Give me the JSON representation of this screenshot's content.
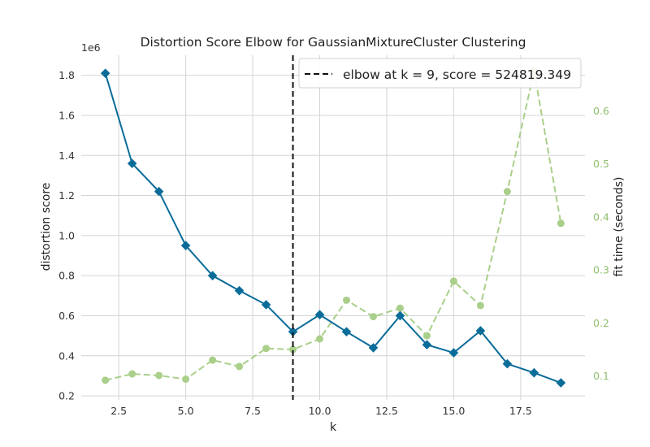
{
  "chart_data": {
    "type": "line",
    "title": "Distortion Score Elbow for GaussianMixtureCluster Clustering",
    "xlabel": "k",
    "ylabel": "distortion score",
    "y2label": "fit time (seconds)",
    "yscale_label": "1e6",
    "xlim": [
      1.1,
      19.9
    ],
    "ylim": [
      0.18,
      1.9
    ],
    "y2lim": [
      0.055,
      0.705
    ],
    "xticks": [
      2.5,
      5.0,
      7.5,
      10.0,
      12.5,
      15.0,
      17.5
    ],
    "xtick_labels": [
      "2.5",
      "5.0",
      "7.5",
      "10.0",
      "12.5",
      "15.0",
      "17.5"
    ],
    "yticks": [
      0.2,
      0.4,
      0.6,
      0.8,
      1.0,
      1.2,
      1.4,
      1.6,
      1.8
    ],
    "ytick_labels": [
      "0.2",
      "0.4",
      "0.6",
      "0.8",
      "1.0",
      "1.2",
      "1.4",
      "1.6",
      "1.8"
    ],
    "y2ticks": [
      0.1,
      0.2,
      0.3,
      0.4,
      0.5,
      0.6
    ],
    "y2tick_labels": [
      "0.1",
      "0.2",
      "0.3",
      "0.4",
      "0.5",
      "0.6"
    ],
    "grid": true,
    "legend_position": "top-right",
    "legend_text": "elbow at k = 9, score = 524819.349",
    "elbow_k": 9,
    "series": [
      {
        "role": "distortion",
        "axis": "left",
        "color": "#0a6c99",
        "marker": "diamond",
        "x": [
          2,
          3,
          4,
          5,
          6,
          7,
          8,
          9,
          10,
          11,
          12,
          13,
          14,
          15,
          16,
          17,
          18,
          19
        ],
        "values": [
          1.81,
          1.36,
          1.22,
          0.95,
          0.8,
          0.725,
          0.655,
          0.52,
          0.605,
          0.52,
          0.44,
          0.6,
          0.455,
          0.415,
          0.525,
          0.36,
          0.315,
          0.265
        ]
      },
      {
        "role": "fit time",
        "axis": "right",
        "color": "#a9cf8a",
        "marker": "circle",
        "x": [
          2,
          3,
          4,
          5,
          6,
          7,
          8,
          9,
          10,
          11,
          12,
          13,
          14,
          15,
          16,
          17,
          18,
          19
        ],
        "values": [
          0.092,
          0.104,
          0.101,
          0.094,
          0.13,
          0.118,
          0.152,
          0.15,
          0.17,
          0.243,
          0.212,
          0.228,
          0.176,
          0.279,
          0.233,
          0.448,
          0.675,
          0.388
        ]
      }
    ]
  }
}
